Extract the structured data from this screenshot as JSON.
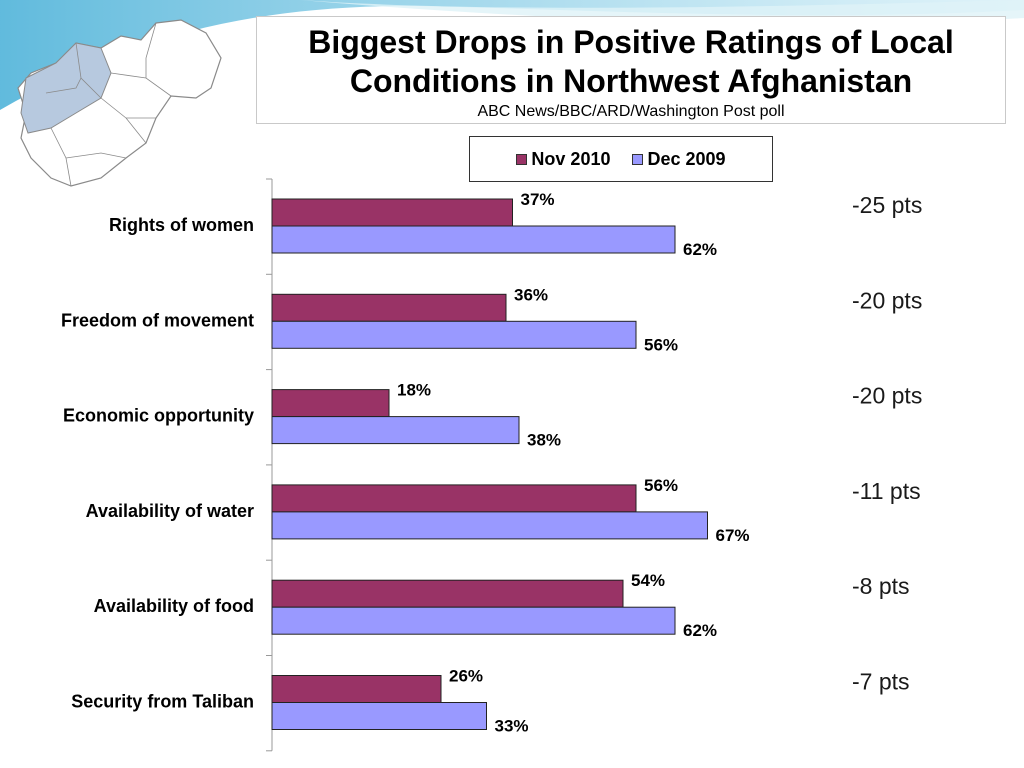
{
  "title": "Biggest Drops in Positive Ratings of Local Conditions in Northwest Afghanistan",
  "subtitle": "ABC News/BBC/ARD/Washington Post poll",
  "colors": {
    "nov2010": "#993366",
    "dec2009": "#9999ff",
    "map_fill": "#ffffff",
    "map_highlight": "#b7c9df",
    "map_stroke": "#8a8a8a",
    "decor_blue": "#6cc6e3"
  },
  "chart_data": {
    "type": "bar",
    "orientation": "horizontal",
    "title": "Biggest Drops in Positive Ratings of Local Conditions in Northwest Afghanistan",
    "subtitle": "ABC News/BBC/ARD/Washington Post poll",
    "categories": [
      "Rights of women",
      "Freedom of movement",
      "Economic opportunity",
      "Availability of water",
      "Availability of food",
      "Security from Taliban"
    ],
    "series": [
      {
        "name": "Nov 2010",
        "values": [
          37,
          36,
          18,
          56,
          54,
          26
        ]
      },
      {
        "name": "Dec 2009",
        "values": [
          62,
          56,
          38,
          67,
          62,
          33
        ]
      }
    ],
    "value_labels": {
      "Nov 2010": [
        "37%",
        "36%",
        "18%",
        "56%",
        "54%",
        "26%"
      ],
      "Dec 2009": [
        "62%",
        "56%",
        "38%",
        "67%",
        "62%",
        "33%"
      ]
    },
    "differences": [
      "-25 pts",
      "-20 pts",
      "-20 pts",
      "-11 pts",
      "-8 pts",
      "-7 pts"
    ],
    "xlim": [
      0,
      100
    ],
    "legend_position": "top",
    "grid": false
  }
}
